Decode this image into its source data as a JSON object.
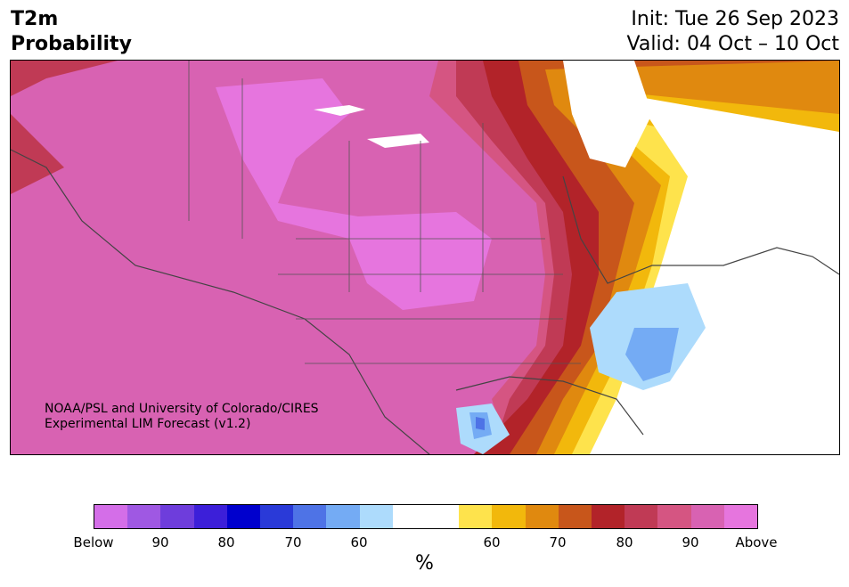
{
  "title": {
    "line1": "T2m",
    "line2": "Probability"
  },
  "dates": {
    "init": "Init: Tue 26 Sep 2023",
    "valid": "Valid: 04 Oct – 10 Oct"
  },
  "credit": {
    "line1": "NOAA/PSL and University of Colorado/CIRES",
    "line2": "Experimental LIM Forecast (v1.2)"
  },
  "colorbar": {
    "colors": [
      "#d46ee8",
      "#9f58e3",
      "#6e3ddc",
      "#3c1fd9",
      "#0000cd",
      "#2a3ad8",
      "#4e73e6",
      "#74abf4",
      "#addbfc",
      "#ffffff",
      "#ffffff",
      "#fee34c",
      "#f2b80c",
      "#e0890f",
      "#c8561b",
      "#b22329",
      "#c03a55",
      "#d55582",
      "#d862b2",
      "#e675de"
    ],
    "tick_labels": [
      "Below",
      "90",
      "80",
      "70",
      "60",
      "60",
      "70",
      "80",
      "90",
      "Above"
    ],
    "unit_label": "%"
  },
  "map": {
    "above_colors": {
      "p95": "#e675de",
      "p90": "#d862b2",
      "p85": "#d55582",
      "p80": "#c03a55",
      "p75": "#b22329",
      "p70": "#c8561b",
      "p65": "#e0890f",
      "p60": "#f2b80c",
      "p55": "#fee34c"
    },
    "below_colors": {
      "p55": "#addbfc",
      "p60": "#74abf4",
      "p65": "#4e73e6"
    }
  }
}
